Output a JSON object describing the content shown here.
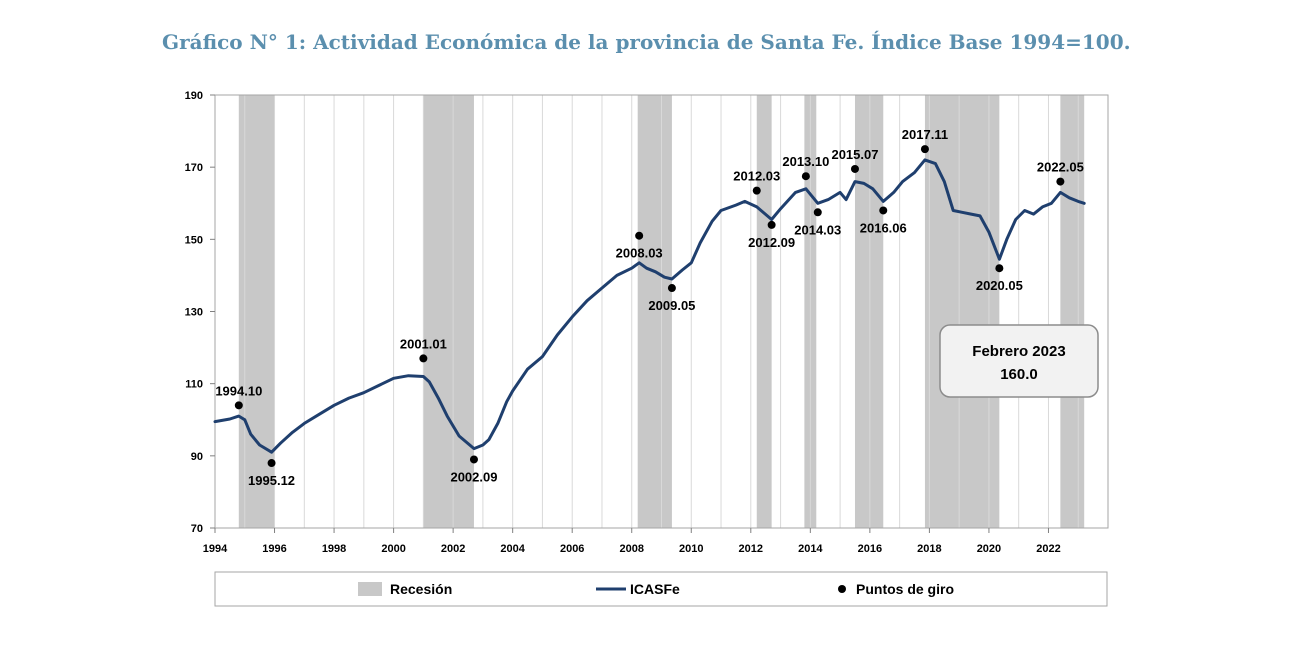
{
  "title": "Gráfico N° 1: Actividad Económica de la provincia de Santa Fe. Índice Base 1994=100.",
  "chart_data": {
    "type": "line",
    "title": "Gráfico N° 1: Actividad Económica de la provincia de Santa Fe. Índice Base 1994=100.",
    "xlabel": "",
    "ylabel": "",
    "xlim": [
      1994.0,
      2024.0
    ],
    "ylim": [
      70,
      190
    ],
    "yticks": [
      "70",
      "90",
      "110",
      "130",
      "150",
      "170",
      "190"
    ],
    "xticks": [
      "1994",
      "1996",
      "1998",
      "2000",
      "2002",
      "2004",
      "2006",
      "2008",
      "2010",
      "2012",
      "2014",
      "2016",
      "2018",
      "2020",
      "2022"
    ],
    "recessions": [
      [
        1994.8,
        1996.0
      ],
      [
        2001.0,
        2002.7
      ],
      [
        2008.2,
        2009.35
      ],
      [
        2012.2,
        2012.7
      ],
      [
        2013.8,
        2014.2
      ],
      [
        2015.5,
        2016.45
      ],
      [
        2017.85,
        2020.35
      ],
      [
        2022.4,
        2023.2
      ]
    ],
    "series": [
      {
        "name": "ICASFe",
        "color": "#1f3f6e",
        "x": [
          1994.0,
          1994.5,
          1994.8,
          1995.0,
          1995.2,
          1995.5,
          1995.9,
          1996.2,
          1996.6,
          1997.0,
          1997.5,
          1998.0,
          1998.5,
          1999.0,
          1999.5,
          2000.0,
          2000.5,
          2001.0,
          2001.2,
          2001.5,
          2001.8,
          2002.2,
          2002.7,
          2003.0,
          2003.2,
          2003.5,
          2003.8,
          2004.0,
          2004.5,
          2005.0,
          2005.5,
          2006.0,
          2006.5,
          2007.0,
          2007.5,
          2008.0,
          2008.25,
          2008.5,
          2008.8,
          2009.1,
          2009.35,
          2009.7,
          2010.0,
          2010.3,
          2010.7,
          2011.0,
          2011.5,
          2011.8,
          2012.2,
          2012.7,
          2013.0,
          2013.5,
          2013.85,
          2014.25,
          2014.6,
          2015.0,
          2015.2,
          2015.5,
          2015.8,
          2016.1,
          2016.45,
          2016.8,
          2017.1,
          2017.5,
          2017.85,
          2018.2,
          2018.5,
          2018.8,
          2019.1,
          2019.4,
          2019.7,
          2020.0,
          2020.35,
          2020.6,
          2020.9,
          2021.2,
          2021.5,
          2021.8,
          2022.1,
          2022.4,
          2022.7,
          2023.0,
          2023.2
        ],
        "values": [
          99.5,
          100.2,
          101.0,
          100.0,
          96.0,
          93.0,
          91.0,
          93.5,
          96.5,
          99.0,
          101.5,
          104.0,
          106.0,
          107.5,
          109.5,
          111.5,
          112.2,
          112.0,
          110.5,
          106.0,
          101.0,
          95.5,
          92.0,
          93.0,
          94.5,
          99.0,
          105.0,
          108.0,
          114.0,
          117.5,
          123.5,
          128.5,
          133.0,
          136.5,
          140.0,
          142.0,
          143.5,
          142.0,
          141.0,
          139.5,
          139.0,
          141.5,
          143.5,
          149.0,
          155.0,
          158.0,
          159.5,
          160.5,
          159.0,
          155.5,
          158.5,
          163.0,
          164.0,
          160.0,
          161.0,
          163.0,
          161.0,
          166.0,
          165.5,
          164.0,
          160.5,
          163.0,
          166.0,
          168.5,
          172.0,
          171.0,
          166.0,
          158.0,
          157.5,
          157.0,
          156.5,
          152.0,
          144.5,
          150.0,
          155.5,
          158.0,
          157.0,
          159.0,
          160.0,
          163.0,
          161.5,
          160.5,
          160.0
        ]
      },
      {
        "name": "Puntos de giro",
        "color": "#000000",
        "points": [
          {
            "x": 1994.8,
            "y": 104.0,
            "label": "1994.10",
            "label_pos": "above"
          },
          {
            "x": 1995.9,
            "y": 88.0,
            "label": "1995.12",
            "label_pos": "below"
          },
          {
            "x": 2001.0,
            "y": 117.0,
            "label": "2001.01",
            "label_pos": "above"
          },
          {
            "x": 2002.7,
            "y": 89.0,
            "label": "2002.09",
            "label_pos": "below"
          },
          {
            "x": 2008.25,
            "y": 151.0,
            "label": "2008.03",
            "label_pos": "below"
          },
          {
            "x": 2009.35,
            "y": 136.5,
            "label": "2009.05",
            "label_pos": "below"
          },
          {
            "x": 2012.2,
            "y": 163.5,
            "label": "2012.03",
            "label_pos": "above"
          },
          {
            "x": 2012.7,
            "y": 154.0,
            "label": "2012.09",
            "label_pos": "below"
          },
          {
            "x": 2013.85,
            "y": 167.5,
            "label": "2013.10",
            "label_pos": "above"
          },
          {
            "x": 2014.25,
            "y": 157.5,
            "label": "2014.03",
            "label_pos": "below"
          },
          {
            "x": 2015.5,
            "y": 169.5,
            "label": "2015.07",
            "label_pos": "above"
          },
          {
            "x": 2016.45,
            "y": 158.0,
            "label": "2016.06",
            "label_pos": "below"
          },
          {
            "x": 2017.85,
            "y": 175.0,
            "label": "2017.11",
            "label_pos": "above"
          },
          {
            "x": 2020.35,
            "y": 142.0,
            "label": "2020.05",
            "label_pos": "below"
          },
          {
            "x": 2022.4,
            "y": 166.0,
            "label": "2022.05",
            "label_pos": "above"
          }
        ]
      }
    ],
    "legend": [
      {
        "label": "Recesión",
        "kind": "patch",
        "color": "#c8c8c8"
      },
      {
        "label": "ICASFe",
        "kind": "line",
        "color": "#1f3f6e"
      },
      {
        "label": "Puntos de giro",
        "kind": "marker",
        "color": "#000000"
      }
    ],
    "annotation_box": {
      "line1": "Febrero 2023",
      "line2": "160.0"
    }
  }
}
